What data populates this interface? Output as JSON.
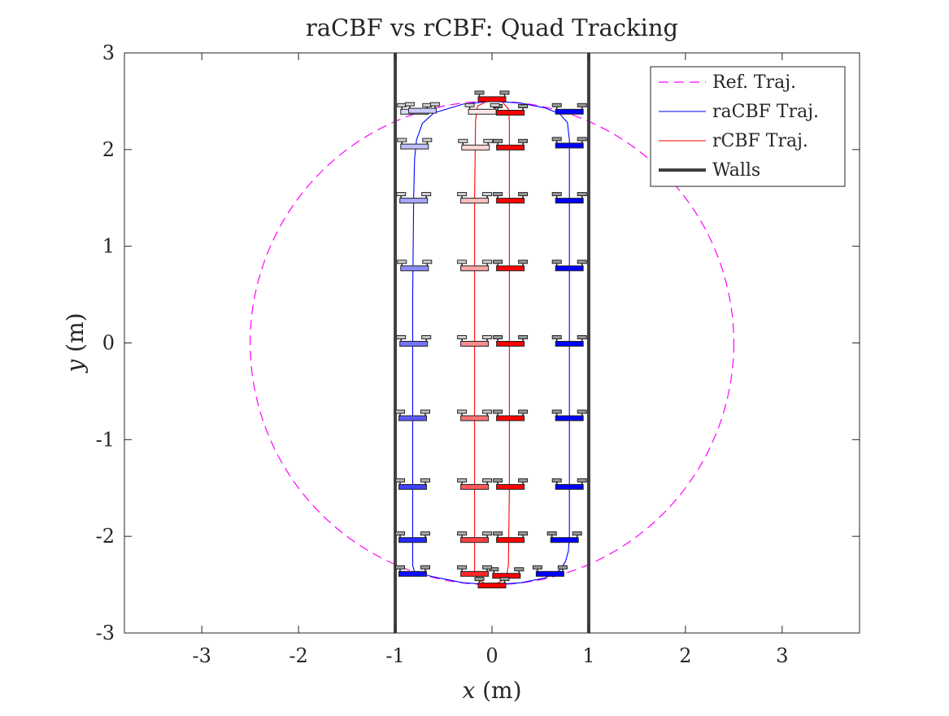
{
  "chart_data": {
    "type": "line",
    "title": "raCBF vs rCBF: Quad Tracking",
    "xlabel": "x (m)",
    "xlabel_var": "x",
    "xlabel_unit": " (m)",
    "ylabel": "y (m)",
    "ylabel_var": "y",
    "ylabel_unit": " (m)",
    "xlim": [
      -3.8,
      3.8
    ],
    "ylim": [
      -3,
      3
    ],
    "xticks": [
      -3,
      -2,
      -1,
      0,
      1,
      2,
      3
    ],
    "yticks": [
      -3,
      -2,
      -1,
      0,
      1,
      2,
      3
    ],
    "xtick_labels": [
      "-3",
      "-2",
      "-1",
      "0",
      "1",
      "2",
      "3"
    ],
    "ytick_labels": [
      "-3",
      "-2",
      "-1",
      "0",
      "1",
      "2",
      "3"
    ],
    "grid": false,
    "legend_position": "top-right",
    "series": [
      {
        "name": "Ref. Traj.",
        "kind": "circle",
        "center": [
          0,
          0
        ],
        "radius": 2.5,
        "color": "#ff00ff",
        "dash": true
      },
      {
        "name": "raCBF Traj.",
        "color": "#0000ff",
        "points": [
          [
            0.0,
            2.5
          ],
          [
            0.3,
            2.48
          ],
          [
            0.55,
            2.43
          ],
          [
            0.7,
            2.37
          ],
          [
            0.78,
            2.28
          ],
          [
            0.8,
            2.1
          ],
          [
            0.8,
            1.5
          ],
          [
            0.8,
            0.5
          ],
          [
            0.8,
            -0.5
          ],
          [
            0.8,
            -1.5
          ],
          [
            0.8,
            -2.0
          ],
          [
            0.79,
            -2.15
          ],
          [
            0.76,
            -2.26
          ],
          [
            0.7,
            -2.35
          ],
          [
            0.55,
            -2.43
          ],
          [
            0.3,
            -2.48
          ],
          [
            0.0,
            -2.5
          ],
          [
            -0.3,
            -2.48
          ],
          [
            -0.6,
            -2.42
          ],
          [
            -0.8,
            -2.37
          ],
          [
            -0.82,
            -2.3
          ],
          [
            -0.82,
            -1.5
          ],
          [
            -0.82,
            -0.5
          ],
          [
            -0.82,
            0.5
          ],
          [
            -0.81,
            1.5
          ],
          [
            -0.8,
            1.9
          ],
          [
            -0.78,
            2.1
          ],
          [
            -0.72,
            2.27
          ],
          [
            -0.6,
            2.38
          ],
          [
            -0.3,
            2.47
          ],
          [
            0.0,
            2.5
          ]
        ]
      },
      {
        "name": "rCBF Traj.",
        "color": "#ff0000",
        "points": [
          [
            -0.18,
            -2.37
          ],
          [
            -0.18,
            -1.5
          ],
          [
            -0.18,
            -0.5
          ],
          [
            -0.18,
            0.5
          ],
          [
            -0.18,
            1.5
          ],
          [
            -0.17,
            2.3
          ],
          [
            -0.15,
            2.45
          ],
          [
            -0.05,
            2.5
          ],
          [
            0.1,
            2.5
          ],
          [
            0.17,
            2.42
          ],
          [
            0.18,
            2.3
          ],
          [
            0.18,
            1.5
          ],
          [
            0.18,
            0.5
          ],
          [
            0.18,
            -0.5
          ],
          [
            0.18,
            -1.5
          ],
          [
            0.17,
            -2.3
          ],
          [
            0.15,
            -2.42
          ],
          [
            0.07,
            -2.48
          ],
          [
            -0.05,
            -2.5
          ],
          [
            -0.14,
            -2.45
          ],
          [
            -0.18,
            -2.37
          ]
        ]
      },
      {
        "name": "Walls",
        "color": "#404040",
        "kind": "vlines",
        "x": [
          -1,
          1
        ]
      }
    ],
    "quad_markers": {
      "raCBF_color": "#0000ff",
      "rCBF_color": "#ff0000",
      "raCBF": [
        [
          0.8,
          2.4,
          1.0
        ],
        [
          0.8,
          2.05,
          1.0
        ],
        [
          0.8,
          1.48,
          1.0
        ],
        [
          0.8,
          0.78,
          1.0
        ],
        [
          0.8,
          0.0,
          1.0
        ],
        [
          0.8,
          -0.77,
          1.0
        ],
        [
          0.8,
          -1.48,
          1.0
        ],
        [
          0.75,
          -2.03,
          1.0
        ],
        [
          0.6,
          -2.38,
          1.0
        ],
        [
          -0.8,
          2.4,
          0.15
        ],
        [
          -0.72,
          2.41,
          0.2
        ],
        [
          -0.8,
          2.04,
          0.25
        ],
        [
          -0.81,
          1.48,
          0.35
        ],
        [
          -0.8,
          0.78,
          0.45
        ],
        [
          -0.81,
          0.0,
          0.55
        ],
        [
          -0.82,
          -0.77,
          0.65
        ],
        [
          -0.82,
          -1.48,
          0.75
        ],
        [
          -0.82,
          -2.03,
          0.85
        ],
        [
          -0.82,
          -2.38,
          0.95
        ]
      ],
      "rCBF": [
        [
          0.0,
          2.53,
          1.0
        ],
        [
          0.19,
          2.39,
          1.0
        ],
        [
          0.19,
          2.03,
          1.0
        ],
        [
          0.19,
          1.48,
          1.0
        ],
        [
          0.19,
          0.78,
          1.0
        ],
        [
          0.19,
          0.0,
          1.0
        ],
        [
          0.19,
          -0.77,
          1.0
        ],
        [
          0.19,
          -1.48,
          1.0
        ],
        [
          0.19,
          -2.03,
          1.0
        ],
        [
          0.15,
          -2.4,
          1.0
        ],
        [
          0.0,
          -2.5,
          1.0
        ],
        [
          -0.1,
          2.4,
          0.1
        ],
        [
          -0.17,
          2.03,
          0.15
        ],
        [
          -0.18,
          1.48,
          0.25
        ],
        [
          -0.18,
          0.78,
          0.35
        ],
        [
          -0.18,
          0.0,
          0.45
        ],
        [
          -0.18,
          -0.77,
          0.55
        ],
        [
          -0.18,
          -1.48,
          0.65
        ],
        [
          -0.18,
          -2.03,
          0.75
        ],
        [
          -0.18,
          -2.38,
          0.85
        ]
      ]
    }
  }
}
